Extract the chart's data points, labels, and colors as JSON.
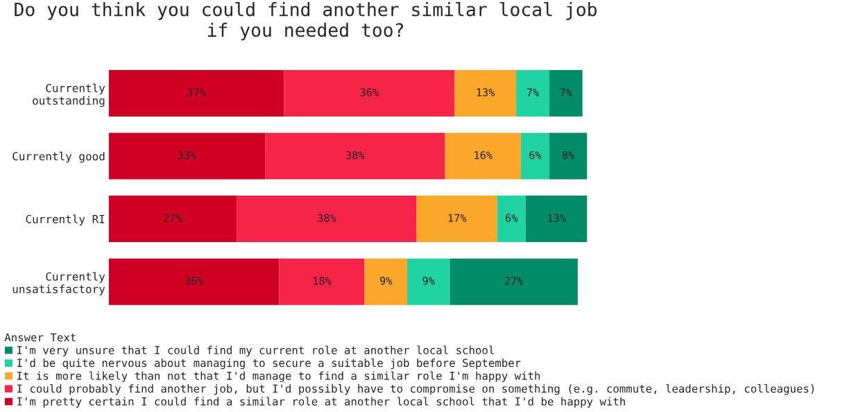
{
  "chart_data": {
    "type": "bar",
    "orientation": "horizontal",
    "stacked": true,
    "title": "Do you think you could find another similar local job\nif you needed too?",
    "categories": [
      "Currently\noutstanding",
      "Currently good",
      "Currently RI",
      "Currently\nunsatisfactory"
    ],
    "legend_title": "Answer Text",
    "legend": "bottom",
    "series": [
      {
        "name": "I'm pretty certain I could find a similar role at another local school that I'd be happy with",
        "color": "#d00025",
        "values": [
          37,
          33,
          27,
          36
        ],
        "value_labels": [
          "37%",
          "33%",
          "27%",
          "36%"
        ]
      },
      {
        "name": "I could probably find another job, but I'd possibly have to compromise on something (e.g. commute, leadership, colleagues)",
        "color": "#f7244a",
        "values": [
          36,
          38,
          38,
          18
        ],
        "value_labels": [
          "36%",
          "38%",
          "38%",
          "18%"
        ]
      },
      {
        "name": "It is more likely than not that I'd manage to find a similar role I'm happy with",
        "color": "#fba82a",
        "values": [
          13,
          16,
          17,
          9
        ],
        "value_labels": [
          "13%",
          "16%",
          "17%",
          "9%"
        ]
      },
      {
        "name": "I'd be quite nervous about managing to secure a suitable job before September",
        "color": "#1fd3a3",
        "values": [
          7,
          6,
          6,
          9
        ],
        "value_labels": [
          "7%",
          "6%",
          "6%",
          "9%"
        ]
      },
      {
        "name": "I'm very unsure that I could find my current role at another local school",
        "color": "#038c68",
        "values": [
          7,
          8,
          13,
          27
        ],
        "value_labels": [
          "7%",
          "8%",
          "13%",
          "27%"
        ]
      }
    ]
  }
}
